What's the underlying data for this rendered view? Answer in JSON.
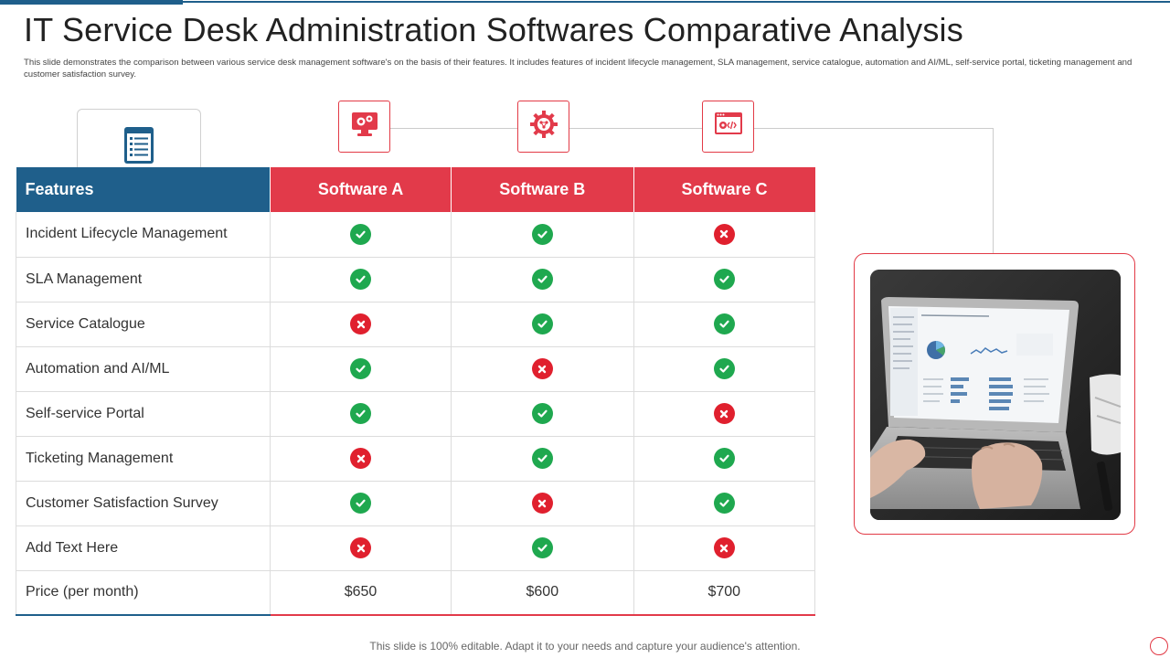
{
  "header": {
    "title": "IT Service Desk Administration Softwares Comparative Analysis",
    "description": "This slide demonstrates the comparison between various service desk management software's on the basis of their features. It includes features of incident lifecycle management, SLA management,  service catalogue, automation and AI/ML,  self-service portal, ticketing management  and customer satisfaction survey."
  },
  "icons": {
    "features": "checklist-icon",
    "software_a": "monitor-gears-icon",
    "software_b": "gear-network-icon",
    "software_c": "browser-code-icon"
  },
  "table": {
    "headers": [
      "Features",
      "Software A",
      "Software B",
      "Software C"
    ],
    "rows": [
      {
        "feature": "Incident  Lifecycle Management",
        "values": [
          "yes",
          "yes",
          "no"
        ]
      },
      {
        "feature": "SLA Management",
        "values": [
          "yes",
          "yes",
          "yes"
        ]
      },
      {
        "feature": "Service Catalogue",
        "values": [
          "no",
          "yes",
          "yes"
        ]
      },
      {
        "feature": "Automation and AI/ML",
        "values": [
          "yes",
          "no",
          "yes"
        ]
      },
      {
        "feature": "Self-service Portal",
        "values": [
          "yes",
          "yes",
          "no"
        ]
      },
      {
        "feature": "Ticketing Management",
        "values": [
          "no",
          "yes",
          "yes"
        ]
      },
      {
        "feature": "Customer Satisfaction Survey",
        "values": [
          "yes",
          "no",
          "yes"
        ]
      },
      {
        "feature": "Add Text Here",
        "values": [
          "no",
          "yes",
          "no"
        ]
      }
    ],
    "price_row": {
      "feature": "Price (per month)",
      "values": [
        "$650",
        "$600",
        "$700"
      ]
    }
  },
  "image": {
    "subject": "laptop-dashboard-photo"
  },
  "footer": {
    "text": "This slide is 100% editable. Adapt it to your needs and capture your audience's attention."
  },
  "colors": {
    "primary_blue": "#1f5f8b",
    "accent_red": "#e23a4a",
    "check_green": "#1fa84f",
    "cross_red": "#e0202e"
  }
}
